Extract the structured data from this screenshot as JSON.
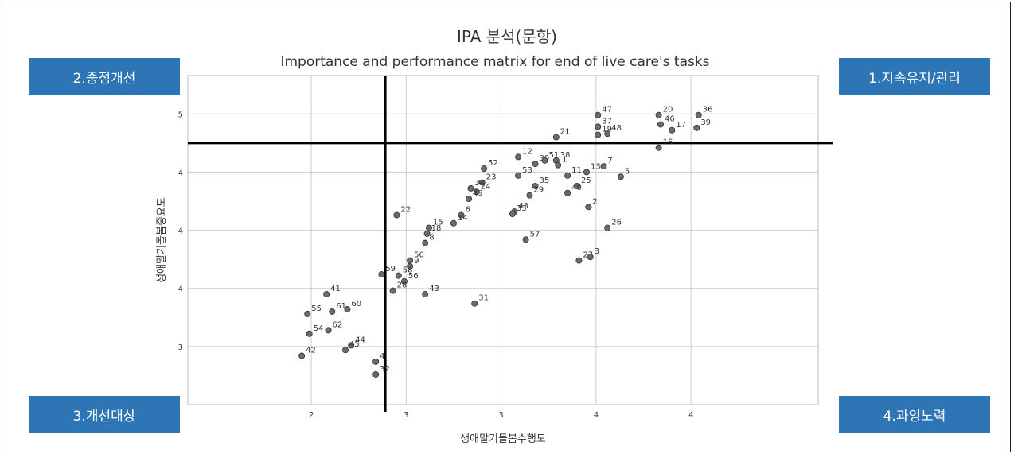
{
  "quadrants": {
    "q1": "1.지속유지/관리",
    "q2": "2.중점개선",
    "q3": "3.개선대상",
    "q4": "4.과잉노력"
  },
  "chart_data": {
    "type": "scatter",
    "title": "IPA 분석(문항)",
    "subtitle": "Importance and performance matrix for end of live care's tasks",
    "xlabel": "생애말기돌봄수행도",
    "ylabel": "생애말기돌봄중요도",
    "xlim": [
      1.35,
      4.67
    ],
    "ylim": [
      2.5,
      5.33
    ],
    "xticks": [
      {
        "value": 2,
        "label": "2"
      },
      {
        "value": 2.5,
        "label": "3"
      },
      {
        "value": 3,
        "label": "3"
      },
      {
        "value": 3.5,
        "label": "4"
      },
      {
        "value": 4,
        "label": "4"
      }
    ],
    "yticks": [
      {
        "value": 3,
        "label": "3"
      },
      {
        "value": 3.5,
        "label": "4"
      },
      {
        "value": 4,
        "label": "4"
      },
      {
        "value": 4.5,
        "label": "4"
      },
      {
        "value": 5,
        "label": "5"
      }
    ],
    "grid": true,
    "reference_lines": {
      "x": 2.39,
      "y": 4.75
    },
    "colors": {
      "point": "#6b6b6b",
      "grid": "#cccccc",
      "quadrant": "#2e75b6",
      "refline": "#000000"
    },
    "points": [
      {
        "label": "36",
        "x": 4.04,
        "y": 4.99
      },
      {
        "label": "39",
        "x": 4.03,
        "y": 4.88
      },
      {
        "label": "20",
        "x": 3.83,
        "y": 4.99
      },
      {
        "label": "46",
        "x": 3.84,
        "y": 4.91
      },
      {
        "label": "17",
        "x": 3.9,
        "y": 4.86
      },
      {
        "label": "16",
        "x": 3.83,
        "y": 4.71
      },
      {
        "label": "47",
        "x": 3.51,
        "y": 4.99
      },
      {
        "label": "37",
        "x": 3.51,
        "y": 4.89
      },
      {
        "label": "48",
        "x": 3.56,
        "y": 4.83
      },
      {
        "label": "19",
        "x": 3.51,
        "y": 4.82
      },
      {
        "label": "21",
        "x": 3.29,
        "y": 4.8
      },
      {
        "label": "7",
        "x": 3.54,
        "y": 4.55
      },
      {
        "label": "5",
        "x": 3.63,
        "y": 4.46
      },
      {
        "label": "13",
        "x": 3.45,
        "y": 4.5
      },
      {
        "label": "12",
        "x": 3.09,
        "y": 4.63
      },
      {
        "label": "30",
        "x": 3.18,
        "y": 4.57
      },
      {
        "label": "51",
        "x": 3.23,
        "y": 4.6
      },
      {
        "label": "38",
        "x": 3.29,
        "y": 4.6
      },
      {
        "label": "53",
        "x": 3.09,
        "y": 4.47
      },
      {
        "label": "1",
        "x": 3.3,
        "y": 4.56
      },
      {
        "label": "35",
        "x": 3.18,
        "y": 4.38
      },
      {
        "label": "11",
        "x": 3.35,
        "y": 4.47
      },
      {
        "label": "25",
        "x": 3.4,
        "y": 4.38
      },
      {
        "label": "40",
        "x": 3.35,
        "y": 4.32
      },
      {
        "label": "2",
        "x": 3.46,
        "y": 4.2
      },
      {
        "label": "29",
        "x": 3.15,
        "y": 4.3
      },
      {
        "label": "43",
        "x": 3.07,
        "y": 4.16
      },
      {
        "label": "33",
        "x": 3.06,
        "y": 4.14
      },
      {
        "label": "57",
        "x": 3.13,
        "y": 3.92
      },
      {
        "label": "26",
        "x": 3.56,
        "y": 4.02
      },
      {
        "label": "27",
        "x": 3.41,
        "y": 3.74
      },
      {
        "label": "3",
        "x": 3.47,
        "y": 3.77
      },
      {
        "label": "52",
        "x": 2.91,
        "y": 4.53
      },
      {
        "label": "23",
        "x": 2.9,
        "y": 4.41
      },
      {
        "label": "34",
        "x": 2.84,
        "y": 4.36
      },
      {
        "label": "24",
        "x": 2.87,
        "y": 4.33
      },
      {
        "label": "49",
        "x": 2.83,
        "y": 4.27
      },
      {
        "label": "6",
        "x": 2.79,
        "y": 4.13
      },
      {
        "label": "14",
        "x": 2.75,
        "y": 4.06
      },
      {
        "label": "22",
        "x": 2.45,
        "y": 4.13
      },
      {
        "label": "18",
        "x": 2.61,
        "y": 3.97
      },
      {
        "label": "15",
        "x": 2.62,
        "y": 4.02
      },
      {
        "label": "8",
        "x": 2.6,
        "y": 3.89
      },
      {
        "label": "50",
        "x": 2.52,
        "y": 3.74
      },
      {
        "label": "9",
        "x": 2.52,
        "y": 3.69
      },
      {
        "label": "59",
        "x": 2.37,
        "y": 3.62
      },
      {
        "label": "58",
        "x": 2.46,
        "y": 3.61
      },
      {
        "label": "56",
        "x": 2.49,
        "y": 3.56
      },
      {
        "label": "28",
        "x": 2.43,
        "y": 3.48
      },
      {
        "label": "43",
        "x": 2.6,
        "y": 3.45
      },
      {
        "label": "31",
        "x": 2.86,
        "y": 3.37
      },
      {
        "label": "41",
        "x": 2.08,
        "y": 3.45
      },
      {
        "label": "55",
        "x": 1.98,
        "y": 3.28
      },
      {
        "label": "61",
        "x": 2.11,
        "y": 3.3
      },
      {
        "label": "60",
        "x": 2.19,
        "y": 3.32
      },
      {
        "label": "54",
        "x": 1.99,
        "y": 3.11
      },
      {
        "label": "62",
        "x": 2.09,
        "y": 3.14
      },
      {
        "label": "42",
        "x": 1.95,
        "y": 2.92
      },
      {
        "label": "4",
        "x": 2.34,
        "y": 2.87
      },
      {
        "label": "32",
        "x": 2.34,
        "y": 2.76
      },
      {
        "label": "44",
        "x": 2.21,
        "y": 3.01
      },
      {
        "label": "45",
        "x": 2.18,
        "y": 2.97
      }
    ]
  }
}
